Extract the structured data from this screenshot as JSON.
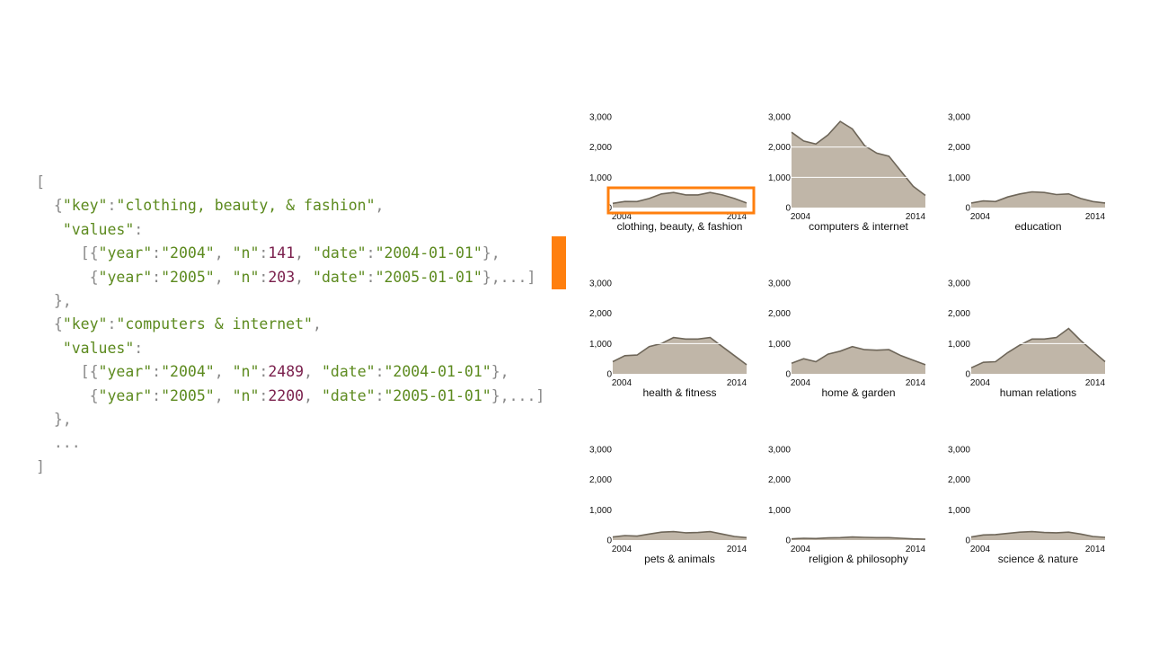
{
  "code_lines": [
    [
      [
        "p",
        "["
      ]
    ],
    [
      [
        "p",
        "  "
      ],
      [
        "p",
        "{"
      ],
      [
        "s",
        "\"key\""
      ],
      [
        "p",
        ":"
      ],
      [
        "s",
        "\"clothing, beauty, & fashion\""
      ],
      [
        "p",
        ","
      ]
    ],
    [
      [
        "p",
        "   "
      ],
      [
        "s",
        "\"values\""
      ],
      [
        "p",
        ":"
      ]
    ],
    [
      [
        "p",
        "     "
      ],
      [
        "p",
        "[{"
      ],
      [
        "s",
        "\"year\""
      ],
      [
        "p",
        ":"
      ],
      [
        "s",
        "\"2004\""
      ],
      [
        "p",
        ", "
      ],
      [
        "s",
        "\"n\""
      ],
      [
        "p",
        ":"
      ],
      [
        "n",
        "141"
      ],
      [
        "p",
        ", "
      ],
      [
        "s",
        "\"date\""
      ],
      [
        "p",
        ":"
      ],
      [
        "s",
        "\"2004-01-01\""
      ],
      [
        "p",
        "},"
      ]
    ],
    [
      [
        "p",
        "      "
      ],
      [
        "p",
        "{"
      ],
      [
        "s",
        "\"year\""
      ],
      [
        "p",
        ":"
      ],
      [
        "s",
        "\"2005\""
      ],
      [
        "p",
        ", "
      ],
      [
        "s",
        "\"n\""
      ],
      [
        "p",
        ":"
      ],
      [
        "n",
        "203"
      ],
      [
        "p",
        ", "
      ],
      [
        "s",
        "\"date\""
      ],
      [
        "p",
        ":"
      ],
      [
        "s",
        "\"2005-01-01\""
      ],
      [
        "p",
        "},...]"
      ]
    ],
    [
      [
        "p",
        "  "
      ],
      [
        "p",
        "},"
      ]
    ],
    [
      [
        "p",
        "  "
      ],
      [
        "p",
        "{"
      ],
      [
        "s",
        "\"key\""
      ],
      [
        "p",
        ":"
      ],
      [
        "s",
        "\"computers & internet\""
      ],
      [
        "p",
        ","
      ]
    ],
    [
      [
        "p",
        "   "
      ],
      [
        "s",
        "\"values\""
      ],
      [
        "p",
        ":"
      ]
    ],
    [
      [
        "p",
        "     "
      ],
      [
        "p",
        "[{"
      ],
      [
        "s",
        "\"year\""
      ],
      [
        "p",
        ":"
      ],
      [
        "s",
        "\"2004\""
      ],
      [
        "p",
        ", "
      ],
      [
        "s",
        "\"n\""
      ],
      [
        "p",
        ":"
      ],
      [
        "n",
        "2489"
      ],
      [
        "p",
        ", "
      ],
      [
        "s",
        "\"date\""
      ],
      [
        "p",
        ":"
      ],
      [
        "s",
        "\"2004-01-01\""
      ],
      [
        "p",
        "},"
      ]
    ],
    [
      [
        "p",
        "      "
      ],
      [
        "p",
        "{"
      ],
      [
        "s",
        "\"year\""
      ],
      [
        "p",
        ":"
      ],
      [
        "s",
        "\"2005\""
      ],
      [
        "p",
        ", "
      ],
      [
        "s",
        "\"n\""
      ],
      [
        "p",
        ":"
      ],
      [
        "n",
        "2200"
      ],
      [
        "p",
        ", "
      ],
      [
        "s",
        "\"date\""
      ],
      [
        "p",
        ":"
      ],
      [
        "s",
        "\"2005-01-01\""
      ],
      [
        "p",
        "},...]"
      ]
    ],
    [
      [
        "p",
        "  "
      ],
      [
        "p",
        "},"
      ]
    ],
    [
      [
        "p",
        "  "
      ],
      [
        "p",
        "..."
      ]
    ],
    [
      [
        "p",
        "]"
      ]
    ]
  ],
  "colors": {
    "code_punct": "#888888",
    "code_string": "#5c8a1e",
    "code_number": "#7a1f4c",
    "accent": "#ff7f0e",
    "area_fill": "#c0b6a8",
    "area_stroke": "#6e6659",
    "axis_text": "#111111",
    "gridline": "#ffffff"
  },
  "chart_data": {
    "type": "area",
    "layout": "small-multiples",
    "x": [
      "2004",
      "2005",
      "2006",
      "2007",
      "2008",
      "2009",
      "2010",
      "2011",
      "2012",
      "2013",
      "2014",
      "2015"
    ],
    "x_tick_labels": [
      "2004",
      "2014"
    ],
    "y_ticks": [
      0,
      1000,
      2000,
      3000
    ],
    "y_tick_labels": [
      "0",
      "1,000",
      "2,000",
      "3,000"
    ],
    "ylim": [
      0,
      3000
    ],
    "highlighted_series": "clothing, beauty, & fashion",
    "series": [
      {
        "name": "clothing, beauty, & fashion",
        "values": [
          141,
          203,
          200,
          300,
          450,
          500,
          420,
          420,
          500,
          420,
          300,
          150
        ]
      },
      {
        "name": "computers & internet",
        "values": [
          2489,
          2200,
          2100,
          2400,
          2850,
          2600,
          2050,
          1800,
          1700,
          1200,
          700,
          400
        ]
      },
      {
        "name": "education",
        "values": [
          150,
          220,
          200,
          350,
          450,
          520,
          500,
          430,
          450,
          300,
          200,
          150
        ]
      },
      {
        "name": "health & fitness",
        "values": [
          400,
          600,
          620,
          900,
          1000,
          1200,
          1150,
          1150,
          1200,
          900,
          600,
          300
        ]
      },
      {
        "name": "home & garden",
        "values": [
          350,
          500,
          400,
          650,
          750,
          900,
          800,
          780,
          800,
          600,
          450,
          300
        ]
      },
      {
        "name": "human relations",
        "values": [
          200,
          380,
          400,
          700,
          950,
          1150,
          1150,
          1200,
          1500,
          1100,
          750,
          400
        ]
      },
      {
        "name": "pets & animals",
        "values": [
          100,
          150,
          130,
          200,
          260,
          280,
          240,
          250,
          280,
          200,
          120,
          80
        ]
      },
      {
        "name": "religion & philosophy",
        "values": [
          40,
          60,
          50,
          70,
          80,
          100,
          90,
          80,
          80,
          60,
          40,
          30
        ]
      },
      {
        "name": "science & nature",
        "values": [
          100,
          170,
          180,
          220,
          260,
          280,
          250,
          240,
          260,
          200,
          120,
          90
        ]
      }
    ]
  }
}
